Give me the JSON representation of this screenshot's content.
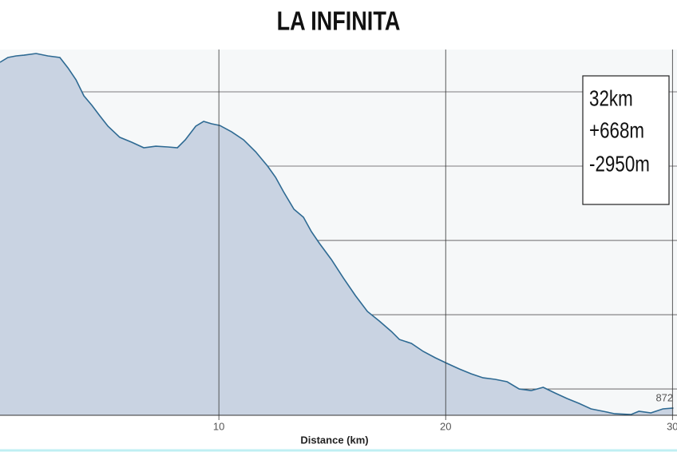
{
  "chart_data": {
    "type": "area",
    "title": "LA INFINITA",
    "x_label": "Distance (km)",
    "x": [
      0.35,
      0.7,
      1.06,
      1.41,
      1.94,
      2.46,
      2.99,
      3.35,
      3.7,
      4.05,
      4.4,
      4.75,
      5.11,
      5.63,
      6.16,
      6.69,
      7.22,
      7.75,
      8.17,
      8.52,
      8.98,
      9.33,
      9.68,
      10.04,
      10.56,
      11.09,
      11.62,
      12.15,
      12.5,
      12.85,
      13.31,
      13.73,
      14.08,
      14.44,
      14.96,
      15.49,
      16.02,
      16.55,
      17.08,
      17.61,
      17.96,
      18.49,
      19.01,
      19.54,
      20.07,
      20.6,
      21.13,
      21.65,
      22.18,
      22.71,
      23.24,
      23.77,
      24.3,
      24.82,
      25.35,
      25.88,
      26.41,
      26.94,
      27.46,
      28.17,
      28.52,
      29.05,
      29.58,
      30.04
    ],
    "series": [
      {
        "color": "#2e6a93",
        "fill": "#c9d3e2",
        "values": [
          3199,
          3231,
          3242,
          3247,
          3258,
          3242,
          3231,
          3161,
          3081,
          2973,
          2909,
          2839,
          2769,
          2694,
          2661,
          2624,
          2634,
          2629,
          2624,
          2677,
          2769,
          2801,
          2785,
          2774,
          2731,
          2677,
          2597,
          2500,
          2425,
          2328,
          2210,
          2156,
          2059,
          1979,
          1871,
          1747,
          1629,
          1522,
          1457,
          1387,
          1333,
          1307,
          1253,
          1210,
          1172,
          1135,
          1102,
          1075,
          1065,
          1049,
          1000,
          989,
          1011,
          973,
          936,
          903,
          866,
          850,
          833,
          828,
          850,
          839,
          866,
          872
        ]
      }
    ],
    "xlim": [
      0.35,
      30.2
    ],
    "ylim": [
      823,
      3285
    ],
    "xticks": [
      10,
      20,
      30
    ],
    "yticks": [
      1000,
      1500,
      2000,
      2500,
      3000
    ],
    "grid": true,
    "annotations": [
      "32km",
      "+668m",
      "-2950m"
    ]
  }
}
